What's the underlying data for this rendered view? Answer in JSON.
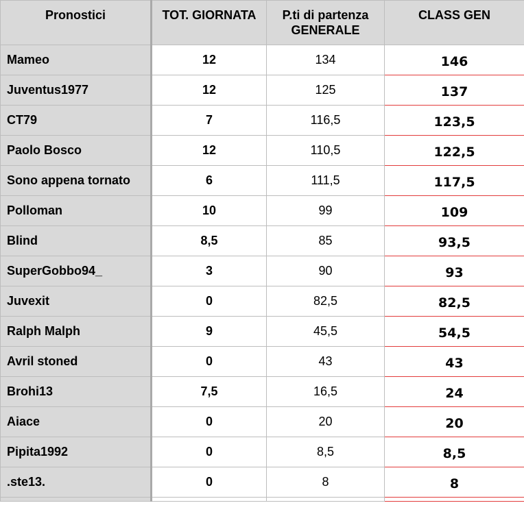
{
  "table": {
    "headers": {
      "name": "Pronostici",
      "tot": "TOT. GIORNATA",
      "start_line1": "P.ti di partenza",
      "start_line2": "GENERALE",
      "class_gen": "CLASS GEN"
    },
    "rows": [
      {
        "name": "Mameo",
        "tot": "12",
        "start": "134",
        "class_gen": "146"
      },
      {
        "name": "Juventus1977",
        "tot": "12",
        "start": "125",
        "class_gen": "137"
      },
      {
        "name": "CT79",
        "tot": "7",
        "start": "116,5",
        "class_gen": "123,5"
      },
      {
        "name": "Paolo Bosco",
        "tot": "12",
        "start": "110,5",
        "class_gen": "122,5"
      },
      {
        "name": "Sono appena tornato",
        "tot": "6",
        "start": "111,5",
        "class_gen": "117,5"
      },
      {
        "name": "Polloman",
        "tot": "10",
        "start": "99",
        "class_gen": "109"
      },
      {
        "name": "Blind",
        "tot": "8,5",
        "start": "85",
        "class_gen": "93,5"
      },
      {
        "name": "SuperGobbo94_",
        "tot": "3",
        "start": "90",
        "class_gen": "93"
      },
      {
        "name": "Juvexit",
        "tot": "0",
        "start": "82,5",
        "class_gen": "82,5"
      },
      {
        "name": "Ralph Malph",
        "tot": "9",
        "start": "45,5",
        "class_gen": "54,5"
      },
      {
        "name": "Avril stoned",
        "tot": "0",
        "start": "43",
        "class_gen": "43"
      },
      {
        "name": "Brohi13",
        "tot": "7,5",
        "start": "16,5",
        "class_gen": "24"
      },
      {
        "name": "Aiace",
        "tot": "0",
        "start": "20",
        "class_gen": "20"
      },
      {
        "name": "Pipita1992",
        "tot": "0",
        "start": "8,5",
        "class_gen": "8,5"
      },
      {
        "name": ".ste13.",
        "tot": "0",
        "start": "8",
        "class_gen": "8"
      }
    ]
  },
  "colors": {
    "header_bg": "#d9d9d9",
    "name_col_bg": "#d9d9d9",
    "grid_line": "#bdbdbd",
    "class_gen_border": "#e23b3b"
  }
}
